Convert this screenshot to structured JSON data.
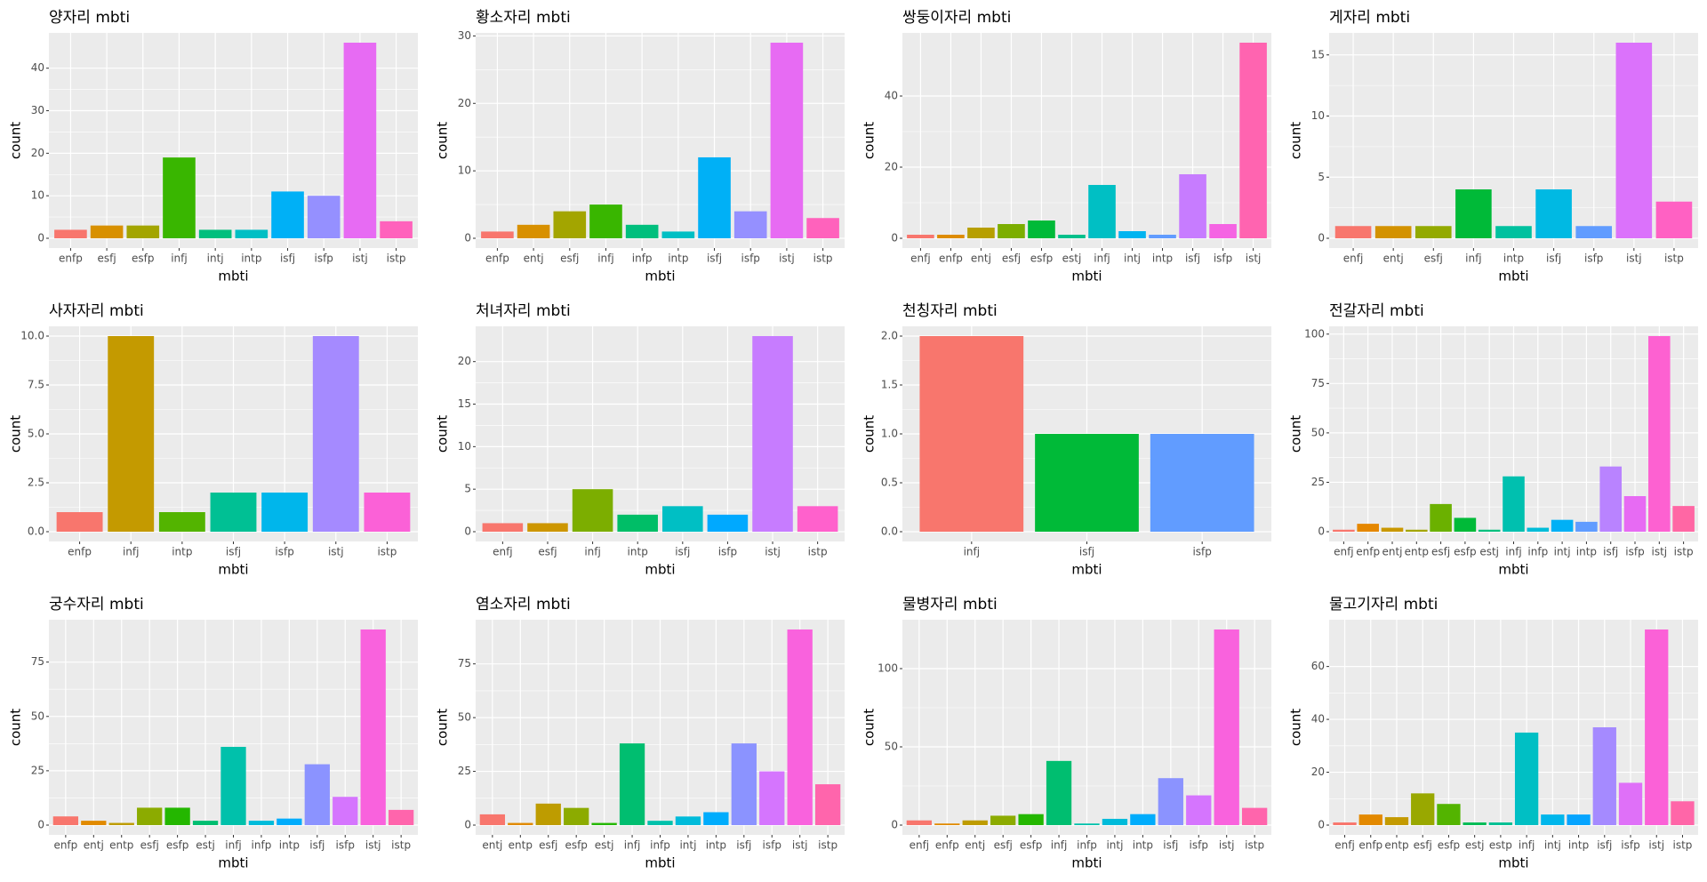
{
  "chart_data": [
    {
      "type": "bar",
      "title": "양자리 mbti",
      "x_label": "mbti",
      "y_label": "count",
      "categories": [
        "enfp",
        "esfj",
        "esfp",
        "infj",
        "intj",
        "intp",
        "isfj",
        "isfp",
        "istj",
        "istp"
      ],
      "values": [
        2,
        3,
        3,
        19,
        2,
        2,
        11,
        10,
        46,
        4
      ],
      "colors": [
        "#F8766D",
        "#D89000",
        "#A3A500",
        "#39B600",
        "#00BF7D",
        "#00BFC4",
        "#00B0F6",
        "#9590FF",
        "#E76BF3",
        "#FF62BC"
      ],
      "ylim": [
        -2.3,
        48.3
      ],
      "yticks": [
        0,
        10,
        20,
        30,
        40
      ],
      "grid": true
    },
    {
      "type": "bar",
      "title": "황소자리 mbti",
      "x_label": "mbti",
      "y_label": "count",
      "categories": [
        "enfp",
        "entj",
        "esfj",
        "infj",
        "infp",
        "intp",
        "isfj",
        "isfp",
        "istj",
        "istp"
      ],
      "values": [
        1,
        2,
        4,
        5,
        2,
        1,
        12,
        4,
        29,
        3
      ],
      "colors": [
        "#F8766D",
        "#D89000",
        "#A3A500",
        "#39B600",
        "#00BF7D",
        "#00BFC4",
        "#00B0F6",
        "#9590FF",
        "#E76BF3",
        "#FF62BC"
      ],
      "ylim": [
        -1.45,
        30.45
      ],
      "yticks": [
        0,
        10,
        20,
        30
      ],
      "grid": true
    },
    {
      "type": "bar",
      "title": "쌍둥이자리 mbti",
      "x_label": "mbti",
      "y_label": "count",
      "categories": [
        "enfj",
        "enfp",
        "entj",
        "esfj",
        "esfp",
        "estj",
        "infj",
        "intj",
        "intp",
        "isfj",
        "isfp",
        "istj"
      ],
      "values": [
        1,
        1,
        3,
        4,
        5,
        1,
        15,
        2,
        1,
        18,
        4,
        55
      ],
      "colors": [
        "#F8766D",
        "#DE8C00",
        "#B79F00",
        "#7CAE00",
        "#00BA38",
        "#00C08B",
        "#00BFC4",
        "#00B4F0",
        "#619CFF",
        "#C77CFF",
        "#F564E3",
        "#FF64B0"
      ],
      "ylim": [
        -2.75,
        57.75
      ],
      "yticks": [
        0,
        20,
        40
      ],
      "grid": true
    },
    {
      "type": "bar",
      "title": "게자리 mbti",
      "x_label": "mbti",
      "y_label": "count",
      "categories": [
        "enfj",
        "entj",
        "esfj",
        "infj",
        "intp",
        "isfj",
        "isfp",
        "istj",
        "istp"
      ],
      "values": [
        1,
        1,
        1,
        4,
        1,
        4,
        1,
        16,
        3
      ],
      "colors": [
        "#F8766D",
        "#D39200",
        "#93AA00",
        "#00BA38",
        "#00C19F",
        "#00B9E3",
        "#619CFF",
        "#DB72FB",
        "#FF61C3"
      ],
      "ylim": [
        -0.8,
        16.8
      ],
      "yticks": [
        0,
        5,
        10,
        15
      ],
      "grid": true
    },
    {
      "type": "bar",
      "title": "사자자리 mbti",
      "x_label": "mbti",
      "y_label": "count",
      "categories": [
        "enfp",
        "infj",
        "intp",
        "isfj",
        "isfp",
        "istj",
        "istp"
      ],
      "values": [
        1,
        10,
        1,
        2,
        2,
        10,
        2
      ],
      "colors": [
        "#F8766D",
        "#C49A00",
        "#53B400",
        "#00C094",
        "#00B6EB",
        "#A58AFF",
        "#FB61D7"
      ],
      "ylim": [
        -0.5,
        10.5
      ],
      "yticks": [
        {
          "value": 0,
          "label": "0.0"
        },
        {
          "value": 2.5,
          "label": "2.5"
        },
        {
          "value": 5,
          "label": "5.0"
        },
        {
          "value": 7.5,
          "label": "7.5"
        },
        {
          "value": 10,
          "label": "10.0"
        }
      ],
      "grid": true
    },
    {
      "type": "bar",
      "title": "처녀자리 mbti",
      "x_label": "mbti",
      "y_label": "count",
      "categories": [
        "enfj",
        "esfj",
        "infj",
        "intp",
        "isfj",
        "isfp",
        "istj",
        "istp"
      ],
      "values": [
        1,
        1,
        5,
        2,
        3,
        2,
        23,
        3
      ],
      "colors": [
        "#F8766D",
        "#CD9600",
        "#7CAE00",
        "#00BE67",
        "#00BFC4",
        "#00A9FF",
        "#C77CFF",
        "#FF61CC"
      ],
      "ylim": [
        -1.15,
        24.15
      ],
      "yticks": [
        0,
        5,
        10,
        15,
        20
      ],
      "grid": true
    },
    {
      "type": "bar",
      "title": "천칭자리 mbti",
      "x_label": "mbti",
      "y_label": "count",
      "categories": [
        "infj",
        "isfj",
        "isfp"
      ],
      "values": [
        2,
        1,
        1
      ],
      "colors": [
        "#F8766D",
        "#00BA38",
        "#619CFF"
      ],
      "ylim": [
        -0.1,
        2.1
      ],
      "yticks": [
        {
          "value": 0,
          "label": "0.0"
        },
        {
          "value": 0.5,
          "label": "0.5"
        },
        {
          "value": 1,
          "label": "1.0"
        },
        {
          "value": 1.5,
          "label": "1.5"
        },
        {
          "value": 2,
          "label": "2.0"
        }
      ],
      "grid": true
    },
    {
      "type": "bar",
      "title": "전갈자리 mbti",
      "x_label": "mbti",
      "y_label": "count",
      "categories": [
        "enfj",
        "enfp",
        "entj",
        "entp",
        "esfj",
        "esfp",
        "estj",
        "infj",
        "infp",
        "intj",
        "intp",
        "isfj",
        "isfp",
        "istj",
        "istp"
      ],
      "values": [
        1,
        4,
        2,
        1,
        14,
        7,
        1,
        28,
        2,
        6,
        5,
        33,
        18,
        99,
        13
      ],
      "colors": [
        "#F8766D",
        "#E58700",
        "#C99800",
        "#A3A500",
        "#6BB100",
        "#00BA38",
        "#00BF7D",
        "#00C0AF",
        "#00BCD8",
        "#00B0F6",
        "#619CFF",
        "#B983FF",
        "#E76BF3",
        "#FD61D1",
        "#FF67A4"
      ],
      "ylim": [
        -4.95,
        103.95
      ],
      "yticks": [
        0,
        25,
        50,
        75,
        100
      ],
      "grid": true
    },
    {
      "type": "bar",
      "title": "궁수자리 mbti",
      "x_label": "mbti",
      "y_label": "count",
      "categories": [
        "enfp",
        "entj",
        "entp",
        "esfj",
        "esfp",
        "estj",
        "infj",
        "infp",
        "intp",
        "isfj",
        "isfp",
        "istj",
        "istp"
      ],
      "values": [
        4,
        2,
        1,
        8,
        8,
        2,
        36,
        2,
        3,
        28,
        13,
        90,
        7
      ],
      "colors": [
        "#F8766D",
        "#E18A00",
        "#BE9C00",
        "#8CAB00",
        "#24B700",
        "#00BE70",
        "#00C1AB",
        "#00BBDA",
        "#00ACFC",
        "#8B93FF",
        "#D575FE",
        "#F962DD",
        "#FF65AC"
      ],
      "ylim": [
        -4.5,
        94.5
      ],
      "yticks": [
        0,
        25,
        50,
        75
      ],
      "grid": true
    },
    {
      "type": "bar",
      "title": "염소자리 mbti",
      "x_label": "mbti",
      "y_label": "count",
      "categories": [
        "entj",
        "entp",
        "esfj",
        "esfp",
        "estj",
        "infj",
        "infp",
        "intj",
        "intp",
        "isfj",
        "isfp",
        "istj",
        "istp"
      ],
      "values": [
        5,
        1,
        10,
        8,
        1,
        38,
        2,
        4,
        6,
        38,
        25,
        91,
        19
      ],
      "colors": [
        "#F8766D",
        "#E18A00",
        "#BE9C00",
        "#8CAB00",
        "#24B700",
        "#00BE70",
        "#00C1AB",
        "#00BBDA",
        "#00ACFC",
        "#8B93FF",
        "#D575FE",
        "#F962DD",
        "#FF65AC"
      ],
      "ylim": [
        -4.55,
        95.55
      ],
      "yticks": [
        0,
        25,
        50,
        75
      ],
      "grid": true
    },
    {
      "type": "bar",
      "title": "물병자리 mbti",
      "x_label": "mbti",
      "y_label": "count",
      "categories": [
        "enfj",
        "enfp",
        "entj",
        "esfj",
        "esfp",
        "infj",
        "infp",
        "intj",
        "intp",
        "isfj",
        "isfp",
        "istj",
        "istp"
      ],
      "values": [
        3,
        1,
        3,
        6,
        7,
        41,
        1,
        4,
        7,
        30,
        19,
        125,
        11
      ],
      "colors": [
        "#F8766D",
        "#E18A00",
        "#BE9C00",
        "#8CAB00",
        "#24B700",
        "#00BE70",
        "#00C1AB",
        "#00BBDA",
        "#00ACFC",
        "#8B93FF",
        "#D575FE",
        "#F962DD",
        "#FF65AC"
      ],
      "ylim": [
        -6.25,
        131.25
      ],
      "yticks": [
        0,
        50,
        100
      ],
      "grid": true
    },
    {
      "type": "bar",
      "title": "물고기자리 mbti",
      "x_label": "mbti",
      "y_label": "count",
      "categories": [
        "enfj",
        "enfp",
        "entp",
        "esfj",
        "esfp",
        "estj",
        "estp",
        "infj",
        "intj",
        "intp",
        "isfj",
        "isfp",
        "istj",
        "istp"
      ],
      "values": [
        1,
        4,
        3,
        12,
        8,
        1,
        1,
        35,
        4,
        4,
        37,
        16,
        74,
        9
      ],
      "colors": [
        "#F8766D",
        "#E38900",
        "#C49A00",
        "#99A800",
        "#53B400",
        "#00BC56",
        "#00C094",
        "#00BFC4",
        "#00B6EB",
        "#06A4FF",
        "#A58AFF",
        "#DF70F8",
        "#FB61D7",
        "#FF66A8"
      ],
      "ylim": [
        -3.7,
        77.7
      ],
      "yticks": [
        0,
        20,
        40,
        60
      ],
      "grid": true
    }
  ]
}
